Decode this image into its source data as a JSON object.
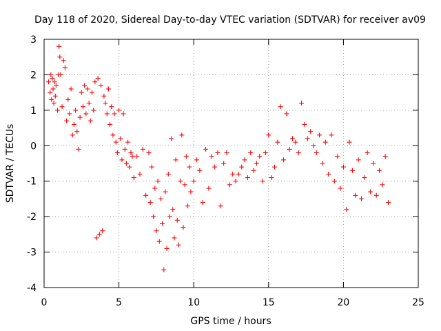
{
  "chart_data": {
    "type": "scatter",
    "title": "Day 118 of 2020, Sidereal Day-to-day VTEC variation (SDTVAR) for receiver av09",
    "xlabel": "GPS time / hours",
    "ylabel": "SDTVAR / TECUs",
    "xlim": [
      0,
      25
    ],
    "ylim": [
      -4,
      3
    ],
    "xticks": [
      "0",
      "5",
      "10",
      "15",
      "20",
      "25"
    ],
    "yticks": [
      "-4",
      "-3",
      "-2",
      "-1",
      "0",
      "1",
      "2",
      "3"
    ],
    "grid": true,
    "marker": "plus",
    "color": "#ff0000",
    "series": [
      {
        "name": "SDTVAR",
        "x": [
          0.3,
          0.4,
          0.45,
          0.5,
          0.55,
          0.6,
          0.65,
          0.7,
          0.75,
          0.8,
          0.9,
          0.95,
          1.0,
          1.05,
          1.1,
          1.2,
          1.3,
          1.4,
          1.5,
          1.6,
          1.7,
          1.8,
          1.9,
          2.0,
          2.1,
          2.2,
          2.3,
          2.4,
          2.5,
          2.6,
          2.7,
          2.8,
          2.9,
          3.0,
          3.1,
          3.2,
          3.3,
          3.4,
          3.5,
          3.6,
          3.7,
          3.8,
          3.9,
          4.0,
          4.1,
          4.2,
          4.3,
          4.4,
          4.5,
          4.6,
          4.7,
          4.8,
          4.9,
          5.0,
          5.1,
          5.2,
          5.3,
          5.4,
          5.5,
          5.6,
          5.7,
          5.8,
          5.9,
          6.0,
          6.2,
          6.4,
          6.6,
          6.8,
          7.0,
          7.1,
          7.2,
          7.3,
          7.4,
          7.5,
          7.6,
          7.7,
          7.8,
          7.9,
          8.0,
          8.1,
          8.2,
          8.3,
          8.4,
          8.5,
          8.6,
          8.7,
          8.8,
          8.9,
          9.0,
          9.1,
          9.2,
          9.3,
          9.4,
          9.5,
          9.6,
          9.7,
          9.8,
          10.0,
          10.2,
          10.4,
          10.6,
          10.8,
          11.0,
          11.2,
          11.4,
          11.6,
          11.8,
          12.0,
          12.2,
          12.4,
          12.6,
          12.8,
          13.0,
          13.2,
          13.4,
          13.6,
          13.8,
          14.0,
          14.2,
          14.4,
          14.6,
          14.8,
          15.0,
          15.2,
          15.4,
          15.6,
          15.8,
          16.0,
          16.2,
          16.4,
          16.6,
          16.8,
          17.0,
          17.2,
          17.4,
          17.6,
          17.8,
          18.0,
          18.2,
          18.4,
          18.6,
          18.8,
          19.0,
          19.2,
          19.4,
          19.6,
          19.8,
          20.0,
          20.2,
          20.4,
          20.6,
          20.8,
          21.0,
          21.2,
          21.4,
          21.6,
          21.8,
          22.0,
          22.2,
          22.4,
          22.6,
          22.8,
          23.0
        ],
        "y": [
          1.8,
          1.5,
          2.0,
          1.3,
          1.9,
          1.6,
          1.2,
          1.8,
          1.4,
          1.7,
          1.0,
          2.0,
          2.8,
          2.5,
          2.0,
          1.1,
          2.4,
          2.2,
          0.7,
          1.3,
          0.9,
          1.6,
          0.3,
          0.6,
          1.0,
          0.4,
          -0.1,
          0.8,
          1.5,
          1.1,
          1.7,
          0.9,
          1.6,
          1.2,
          0.7,
          1.5,
          1.0,
          1.8,
          -2.6,
          1.9,
          -2.5,
          1.7,
          -2.4,
          1.4,
          1.2,
          0.9,
          1.6,
          0.6,
          1.1,
          0.3,
          0.9,
          0.1,
          -0.2,
          1.0,
          0.2,
          -0.4,
          0.9,
          -0.1,
          -0.5,
          0.1,
          -0.6,
          -0.2,
          -0.3,
          -0.9,
          -0.3,
          -0.8,
          -0.1,
          -1.4,
          -0.2,
          -1.6,
          -0.6,
          -2.0,
          -1.2,
          -2.4,
          -1.0,
          -2.7,
          -1.5,
          -2.2,
          -3.5,
          -1.3,
          -2.9,
          -0.8,
          -2.0,
          0.2,
          -1.8,
          -2.6,
          -0.4,
          -2.1,
          -2.8,
          -1.0,
          0.3,
          -2.3,
          -1.1,
          -0.3,
          -1.7,
          -0.6,
          -1.3,
          -1.0,
          -0.4,
          -0.7,
          -1.6,
          -0.1,
          -1.2,
          -0.3,
          -0.6,
          -0.2,
          -1.7,
          -0.5,
          -0.2,
          -1.1,
          -0.8,
          -1.0,
          -0.8,
          -0.6,
          -0.4,
          -0.9,
          -0.2,
          -0.7,
          -0.5,
          -0.3,
          -1.0,
          -0.2,
          0.3,
          -0.9,
          -0.6,
          0.1,
          1.1,
          -0.4,
          0.9,
          -0.1,
          0.2,
          0.1,
          -0.2,
          1.2,
          0.6,
          0.2,
          0.4,
          0.0,
          -0.2,
          0.3,
          -0.5,
          0.1,
          -0.8,
          0.3,
          -1.0,
          -0.3,
          -1.2,
          -0.6,
          -1.8,
          0.1,
          -0.7,
          -1.4,
          -0.4,
          -1.5,
          -0.9,
          -0.2,
          -1.3,
          -0.5,
          -1.4,
          -0.7,
          -1.1,
          -0.3,
          -1.6
        ]
      }
    ]
  }
}
